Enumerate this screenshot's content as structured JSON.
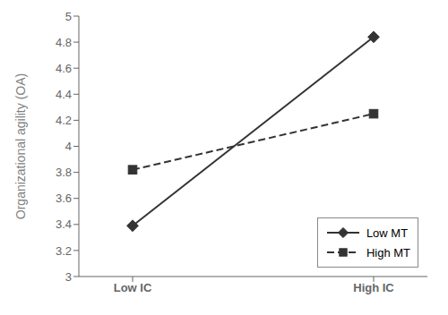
{
  "chart_data": {
    "type": "line",
    "categories": [
      "Low IC",
      "High IC"
    ],
    "series": [
      {
        "name": "Low MT",
        "color": "#333333",
        "marker": "diamond",
        "line_style": "solid",
        "values": [
          3.39,
          4.84
        ]
      },
      {
        "name": "High MT",
        "color": "#333333",
        "marker": "square",
        "line_style": "dashed",
        "values": [
          3.82,
          4.25
        ]
      }
    ],
    "ylabel": "Organizational agility (OA)",
    "ylim": [
      3.0,
      5.0
    ],
    "yticks": [
      3.0,
      3.2,
      3.4,
      3.6,
      3.8,
      4.0,
      4.2,
      4.4,
      4.6,
      4.8,
      5.0
    ],
    "grid": false,
    "legend": "lower right"
  }
}
